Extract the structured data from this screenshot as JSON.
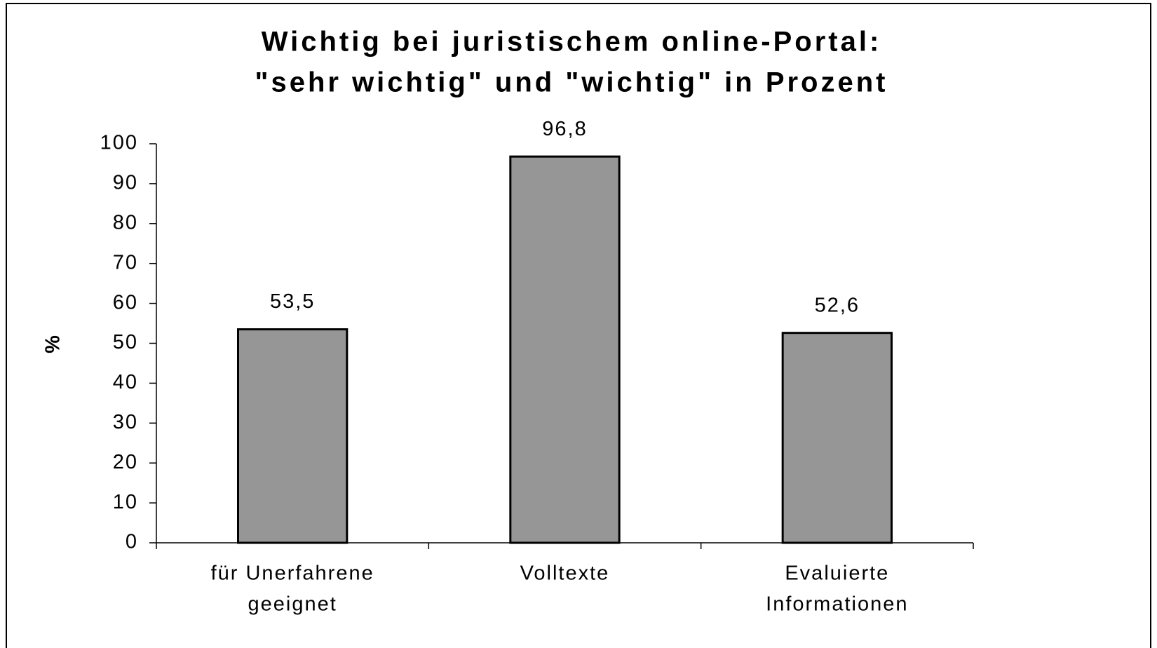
{
  "chart_data": {
    "type": "bar",
    "title": [
      "Wichtig bei juristischem online-Portal:",
      "\"sehr wichtig\" und \"wichtig\" in Prozent"
    ],
    "ylabel": "%",
    "categories": [
      [
        "für Unerfahrene",
        "geeignet"
      ],
      [
        "Volltexte"
      ],
      [
        "Evaluierte",
        "Informationen"
      ]
    ],
    "values": [
      53.5,
      96.8,
      52.6
    ],
    "value_labels": [
      "53,5",
      "96,8",
      "52,6"
    ],
    "color": "#969696",
    "ylim": [
      0,
      100
    ],
    "yticks": [
      0,
      10,
      20,
      30,
      40,
      50,
      60,
      70,
      80,
      90,
      100
    ],
    "grid": false
  }
}
